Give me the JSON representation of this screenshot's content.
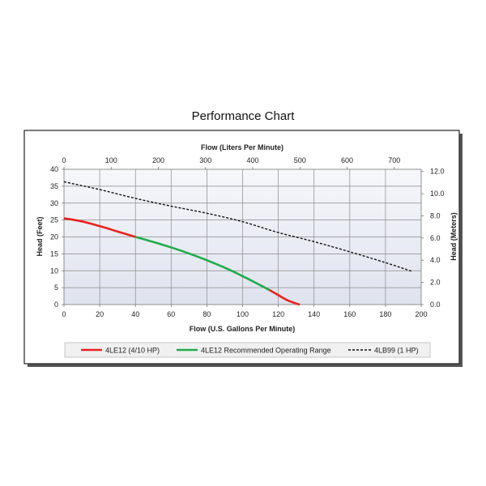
{
  "chart_data": {
    "type": "line",
    "title": "Performance Chart",
    "xlabel": "Flow (U.S. Gallons Per Minute)",
    "ylabel": "Head (Feet)",
    "x2label": "Flow (Liters Per Minute)",
    "y2label": "Head (Meters)",
    "xlim": [
      0,
      200
    ],
    "ylim": [
      0,
      40
    ],
    "x2lim": [
      0,
      757
    ],
    "y2lim": [
      0,
      12.2
    ],
    "xticks": [
      "0",
      "20",
      "40",
      "60",
      "80",
      "100",
      "120",
      "140",
      "160",
      "180",
      "200"
    ],
    "yticks": [
      "0",
      "5",
      "10",
      "15",
      "20",
      "25",
      "30",
      "35",
      "40"
    ],
    "x2ticks": [
      {
        "value": 0,
        "label": "0"
      },
      {
        "value": 100,
        "label": "100"
      },
      {
        "value": 200,
        "label": "200"
      },
      {
        "value": 300,
        "label": "300"
      },
      {
        "value": 400,
        "label": "400"
      },
      {
        "value": 500,
        "label": "500"
      },
      {
        "value": 600,
        "label": "600"
      },
      {
        "value": 700,
        "label": "700"
      }
    ],
    "y2ticks": [
      {
        "value": 0,
        "label": "0.0"
      },
      {
        "value": 2,
        "label": "2.0"
      },
      {
        "value": 4,
        "label": "4.0"
      },
      {
        "value": 6,
        "label": "6.0"
      },
      {
        "value": 8,
        "label": "8.0"
      },
      {
        "value": 10,
        "label": "10.0"
      },
      {
        "value": 12,
        "label": "12.0"
      }
    ],
    "grid": true,
    "legend_position": "bottom",
    "series": [
      {
        "name": "4LE12 (4/10 HP)",
        "color": "#e8231f",
        "style": "solid",
        "x": [
          0,
          10,
          20,
          30,
          40
        ],
        "y": [
          25.5,
          24.6,
          23.2,
          21.6,
          20.0
        ]
      },
      {
        "name": "4LE12 Recommended Operating Range",
        "color": "#20ac4b",
        "style": "solid",
        "x": [
          40,
          50,
          60,
          70,
          80,
          90,
          100,
          110,
          115
        ],
        "y": [
          20.0,
          18.5,
          16.9,
          15.1,
          13.1,
          10.9,
          8.4,
          5.7,
          4.3
        ]
      },
      {
        "name": "4LE12 (4/10 HP)",
        "color": "#e8231f",
        "style": "solid",
        "x": [
          115,
          120,
          125,
          130,
          132
        ],
        "y": [
          4.3,
          2.8,
          1.3,
          0.3,
          0
        ]
      },
      {
        "name": "4LB99 (1 HP)",
        "color": "#111111",
        "style": "dashed",
        "x": [
          0,
          20,
          40,
          60,
          80,
          100,
          120,
          140,
          160,
          180,
          195
        ],
        "y": [
          36.3,
          34.0,
          31.4,
          29.1,
          27.0,
          24.5,
          21.3,
          18.6,
          15.6,
          12.4,
          9.8
        ]
      }
    ],
    "legend": [
      "4LE12 (4/10 HP)",
      "4LE12 Recommended Operating Range",
      "4LB99 (1 HP)"
    ]
  }
}
